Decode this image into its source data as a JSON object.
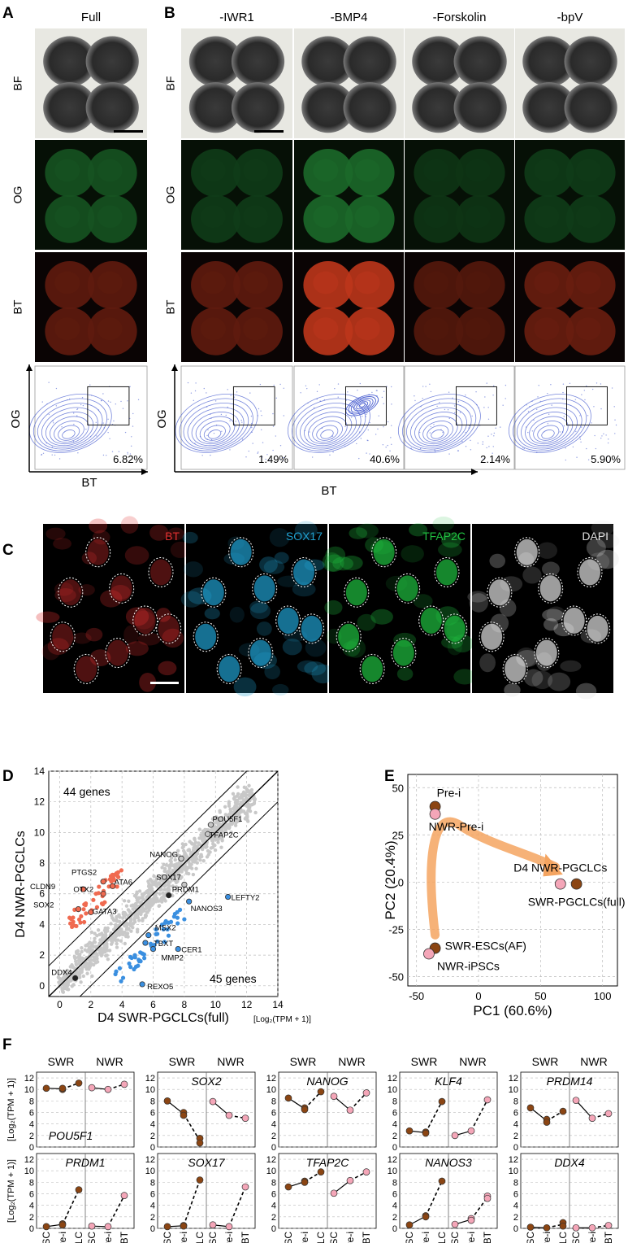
{
  "panel_letters": [
    "A",
    "B",
    "C",
    "D",
    "E",
    "F"
  ],
  "colors": {
    "swr": "#8b4513",
    "nwr": "#f4a6b8",
    "og": "#2e8b3e",
    "bt": "#d23a1e",
    "contour": "#4a5fd0",
    "up": "#f06a50",
    "down": "#3a8fe0",
    "trajectory": "#f4a460"
  },
  "panel_ab": {
    "conditions": [
      "Full",
      "-IWR1",
      "-BMP4",
      "-Forskolin",
      "-bpV"
    ],
    "row_labels": [
      "BF",
      "OG",
      "BT"
    ],
    "flow_y_label": "OG",
    "flow_x_label": "BT",
    "percentages": [
      "6.82%",
      "1.49%",
      "40.6%",
      "2.14%",
      "5.90%"
    ],
    "og_intensity": [
      0.55,
      0.4,
      0.7,
      0.35,
      0.4
    ],
    "bt_intensity": [
      0.45,
      0.45,
      0.9,
      0.4,
      0.5
    ]
  },
  "panel_c": {
    "channels": [
      "BT",
      "SOX17",
      "TFAP2C",
      "DAPI"
    ],
    "channel_colors": [
      "#e03030",
      "#20a0d0",
      "#20c040",
      "#e0e0e0"
    ]
  },
  "panel_d": {
    "xlabel": "D4 SWR-PGCLCs(full)",
    "ylabel": "D4 NWR-PGCLCs",
    "unit": "[Log₂(TPM + 1)]",
    "ticks": [
      "0",
      "2",
      "4",
      "6",
      "8",
      "10",
      "12",
      "14"
    ],
    "upper_text": "44 genes",
    "lower_text": "45 genes",
    "genes": [
      {
        "name": "POU5F1",
        "x": 9.7,
        "y": 10.5,
        "c": "gray"
      },
      {
        "name": "TFAP2C",
        "x": 9.5,
        "y": 9.9,
        "c": "gray"
      },
      {
        "name": "NANOG",
        "x": 7.8,
        "y": 8.3,
        "c": "gray"
      },
      {
        "name": "SOX17",
        "x": 8.0,
        "y": 6.6,
        "c": "gray"
      },
      {
        "name": "PRDM1",
        "x": 7.0,
        "y": 5.9,
        "c": "black"
      },
      {
        "name": "PTGS2",
        "x": 2.8,
        "y": 6.8,
        "c": "up"
      },
      {
        "name": "ATA6",
        "x": 3.4,
        "y": 6.5,
        "c": "up"
      },
      {
        "name": "CLDN9",
        "x": 1.5,
        "y": 6.3,
        "c": "up"
      },
      {
        "name": "OTX2",
        "x": 2.8,
        "y": 6.0,
        "c": "up"
      },
      {
        "name": "SOX2",
        "x": 1.2,
        "y": 5.0,
        "c": "up"
      },
      {
        "name": "GATA3",
        "x": 2.0,
        "y": 4.8,
        "c": "up"
      },
      {
        "name": "LEFTY2",
        "x": 10.8,
        "y": 5.8,
        "c": "down"
      },
      {
        "name": "NANOS3",
        "x": 8.3,
        "y": 5.5,
        "c": "down"
      },
      {
        "name": "MSX2",
        "x": 5.7,
        "y": 3.3,
        "c": "down"
      },
      {
        "name": "TBXT",
        "x": 5.5,
        "y": 2.8,
        "c": "down"
      },
      {
        "name": "MMP2",
        "x": 6.0,
        "y": 2.4,
        "c": "down"
      },
      {
        "name": "CER1",
        "x": 7.6,
        "y": 2.4,
        "c": "down"
      },
      {
        "name": "DDX4",
        "x": 1.0,
        "y": 0.5,
        "c": "black"
      },
      {
        "name": "REXO5",
        "x": 5.3,
        "y": 0.1,
        "c": "down"
      }
    ]
  },
  "panel_e": {
    "xlabel": "PC1 (60.6%)",
    "ylabel": "PC2 (20.4%)",
    "xticks": [
      -50,
      0,
      50,
      100
    ],
    "yticks": [
      50,
      25,
      0,
      -25,
      -50
    ],
    "xlim": [
      -57,
      112
    ],
    "ylim": [
      -55,
      57
    ],
    "points": [
      {
        "name": "Pre-i",
        "x": -35,
        "y": 40,
        "c": "swr"
      },
      {
        "name": "NWR-Pre-i",
        "x": -35,
        "y": 36,
        "c": "nwr"
      },
      {
        "name": "D4 NWR-PGCLCs",
        "x": 66,
        "y": -1,
        "c": "nwr"
      },
      {
        "name": "SWR-PGCLCs(full)",
        "x": 79,
        "y": -1,
        "c": "swr"
      },
      {
        "name": "SWR-ESCs(AF)",
        "x": -35,
        "y": -35,
        "c": "swr"
      },
      {
        "name": "NWR-iPSCs",
        "x": -40,
        "y": -38,
        "c": "nwr"
      }
    ]
  },
  "panel_f": {
    "ylabel": "[Log₂(TPM + 1)]",
    "group_labels": [
      "SWR",
      "NWR"
    ],
    "x_labels": [
      "ESC",
      "Pre-i",
      "PGCLC",
      "iPSC",
      "Pre-i",
      "OGBT"
    ],
    "yticks": [
      "0",
      "2",
      "4",
      "6",
      "8",
      "10",
      "12"
    ],
    "genes": [
      {
        "name": "POU5F1",
        "swr": [
          [
            10.2
          ],
          [
            10.0,
            10.2
          ],
          [
            11.1
          ]
        ],
        "nwr": [
          [
            10.3
          ],
          [
            10.0
          ],
          [
            10.9
          ]
        ]
      },
      {
        "name": "SOX2",
        "swr": [
          [
            8.0
          ],
          [
            6.0,
            5.5
          ],
          [
            1.5,
            0.7
          ]
        ],
        "nwr": [
          [
            7.9
          ],
          [
            5.5
          ],
          [
            5.0
          ]
        ]
      },
      {
        "name": "NANOG",
        "swr": [
          [
            8.5
          ],
          [
            6.8,
            6.5
          ],
          [
            9.6
          ]
        ],
        "nwr": [
          [
            8.8
          ],
          [
            6.4
          ],
          [
            9.4
          ]
        ]
      },
      {
        "name": "KLF4",
        "swr": [
          [
            2.8
          ],
          [
            2.6,
            2.4
          ],
          [
            7.9
          ]
        ],
        "nwr": [
          [
            2.0
          ],
          [
            2.8
          ],
          [
            8.2
          ]
        ]
      },
      {
        "name": "PRDM14",
        "swr": [
          [
            6.8
          ],
          [
            4.8,
            4.3
          ],
          [
            6.2
          ]
        ],
        "nwr": [
          [
            8.1
          ],
          [
            5.0
          ],
          [
            5.8
          ]
        ]
      },
      {
        "name": "PRDM1",
        "swr": [
          [
            0.3
          ],
          [
            0.8,
            0.6
          ],
          [
            6.7
          ]
        ],
        "nwr": [
          [
            0.4
          ],
          [
            0.3
          ],
          [
            5.7
          ]
        ]
      },
      {
        "name": "SOX17",
        "swr": [
          [
            0.3
          ],
          [
            0.5,
            0.4
          ],
          [
            8.4
          ]
        ],
        "nwr": [
          [
            0.6
          ],
          [
            0.3
          ],
          [
            7.2
          ]
        ]
      },
      {
        "name": "TFAP2C",
        "swr": [
          [
            7.2
          ],
          [
            8.2,
            8.0
          ],
          [
            9.8
          ]
        ],
        "nwr": [
          [
            6.1
          ],
          [
            8.3
          ],
          [
            9.8
          ]
        ]
      },
      {
        "name": "NANOS3",
        "swr": [
          [
            0.6
          ],
          [
            2.2,
            2.0
          ],
          [
            8.2
          ]
        ],
        "nwr": [
          [
            0.7
          ],
          [
            1.7,
            1.4
          ],
          [
            5.6,
            5.2
          ]
        ]
      },
      {
        "name": "DDX4",
        "swr": [
          [
            0.2
          ],
          [
            0.1
          ],
          [
            1.0,
            0.4
          ]
        ],
        "nwr": [
          [
            0.1
          ],
          [
            0.1
          ],
          [
            0.5
          ]
        ]
      }
    ]
  }
}
